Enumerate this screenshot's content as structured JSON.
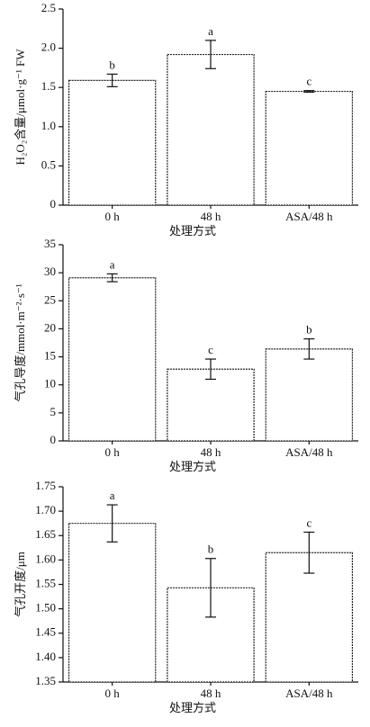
{
  "chart_data": [
    {
      "type": "bar",
      "x_label": "处理方式",
      "y_label": "H₂O₂含量/μmol·g⁻¹ FW",
      "categories": [
        "0 h",
        "48 h",
        "ASA/48 h"
      ],
      "values": [
        1.59,
        1.92,
        1.45
      ],
      "errors": [
        0.08,
        0.18,
        0.01
      ],
      "annotations": [
        "b",
        "a",
        "c"
      ],
      "color": "#ffffff",
      "ylim": [
        0,
        2.5
      ],
      "yticks": [
        0,
        0.5,
        {
          "value": 1,
          "label": "1.0"
        },
        1.5,
        {
          "value": 2,
          "label": "2.0"
        },
        2.5
      ]
    },
    {
      "type": "bar",
      "x_label": "处理方式",
      "y_label": "气孔导度/mmol·m⁻²·s⁻¹",
      "categories": [
        "0 h",
        "48 h",
        "ASA/48 h"
      ],
      "values": [
        29.1,
        12.8,
        16.4
      ],
      "errors": [
        0.7,
        1.8,
        1.8
      ],
      "annotations": [
        "a",
        "c",
        "b"
      ],
      "color": "#ffffff",
      "ylim": [
        0,
        35
      ],
      "yticks": [
        0,
        5,
        10,
        15,
        20,
        25,
        30,
        35
      ]
    },
    {
      "type": "bar",
      "x_label": "处理方式",
      "y_label": "气孔开度/μm",
      "categories": [
        "0 h",
        "48 h",
        "ASA/48 h"
      ],
      "values": [
        1.675,
        1.543,
        1.615
      ],
      "errors": [
        0.038,
        0.06,
        0.042
      ],
      "annotations": [
        "a",
        "b",
        "c"
      ],
      "color": "#ffffff",
      "ylim": [
        1.35,
        1.75
      ],
      "yticks": [
        1.35,
        {
          "value": 1.4,
          "label": "1.40"
        },
        1.45,
        {
          "value": 1.5,
          "label": "1.50"
        },
        1.55,
        {
          "value": 1.6,
          "label": "1.60"
        },
        1.65,
        {
          "value": 1.7,
          "label": "1.70"
        },
        1.75
      ]
    }
  ]
}
